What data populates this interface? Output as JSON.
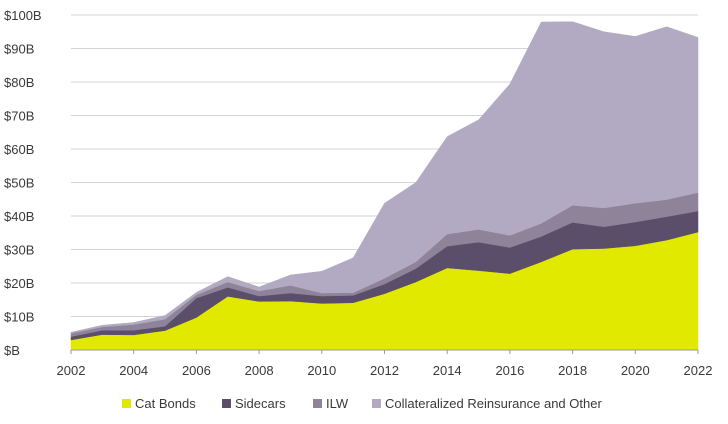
{
  "chart_data": {
    "type": "area",
    "stacked": true,
    "x": [
      2002,
      2003,
      2004,
      2005,
      2006,
      2007,
      2008,
      2009,
      2010,
      2011,
      2012,
      2013,
      2014,
      2015,
      2016,
      2017,
      2018,
      2019,
      2020,
      2021,
      2022
    ],
    "x_ticks": [
      "2002",
      "2004",
      "2006",
      "2008",
      "2010",
      "2012",
      "2014",
      "2016",
      "2018",
      "2020",
      "2022"
    ],
    "y_ticks": [
      "$B",
      "$10B",
      "$20B",
      "$30B",
      "$40B",
      "$50B",
      "$60B",
      "$70B",
      "$80B",
      "$90B",
      "$100B"
    ],
    "ylim": [
      0,
      100
    ],
    "grid": "horizontal",
    "legend_position": "bottom",
    "series": [
      {
        "name": "Cat Bonds",
        "color": "#e2e900",
        "values": [
          3.0,
          4.6,
          4.5,
          5.8,
          9.7,
          16.0,
          14.5,
          14.6,
          13.9,
          14.1,
          16.8,
          20.3,
          24.5,
          23.7,
          22.8,
          26.3,
          30.1,
          30.3,
          31.1,
          32.8,
          35.2
        ]
      },
      {
        "name": "Sidecars",
        "color": "#5a4e6b",
        "values": [
          1.0,
          1.3,
          1.4,
          1.3,
          5.8,
          2.7,
          1.6,
          2.4,
          2.2,
          2.2,
          2.9,
          4.0,
          6.5,
          8.5,
          7.8,
          7.6,
          8.0,
          6.5,
          7.1,
          7.0,
          6.3
        ]
      },
      {
        "name": "ILW",
        "color": "#8e8399",
        "values": [
          1.0,
          1.0,
          1.7,
          2.1,
          1.0,
          1.6,
          1.5,
          2.3,
          0.9,
          0.8,
          1.7,
          2.0,
          3.6,
          3.8,
          3.6,
          3.9,
          5.1,
          5.6,
          5.6,
          5.1,
          5.5
        ]
      },
      {
        "name": "Collateralized Reinsurance and Other",
        "color": "#b2aac2",
        "values": [
          0.3,
          0.5,
          0.6,
          1.1,
          0.7,
          1.6,
          1.2,
          3.1,
          6.5,
          10.4,
          22.4,
          23.7,
          29.1,
          32.7,
          45.2,
          60.1,
          54.8,
          52.6,
          49.8,
          51.6,
          46.3
        ]
      }
    ]
  }
}
